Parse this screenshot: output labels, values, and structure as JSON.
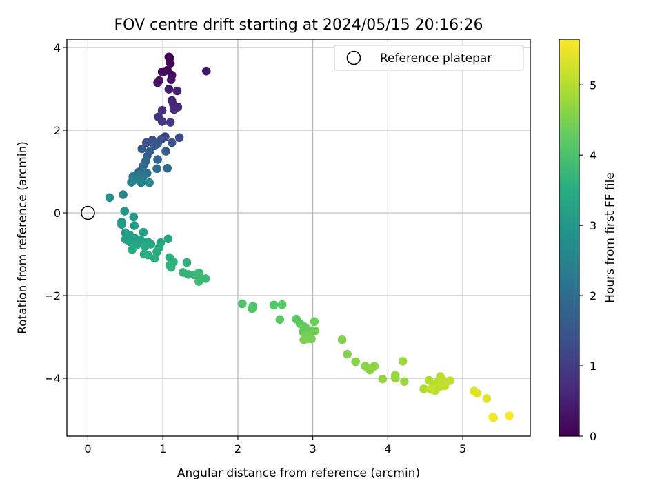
{
  "chart_data": {
    "type": "scatter",
    "title": "FOV centre drift starting at 2024/05/15 20:16:26",
    "xlabel": "Angular distance from reference (arcmin)",
    "ylabel": "Rotation from reference (arcmin)",
    "xlim": [
      -0.28,
      5.9
    ],
    "ylim": [
      -5.4,
      4.2
    ],
    "xticks": [
      0,
      1,
      2,
      3,
      4,
      5
    ],
    "yticks": [
      -4,
      -2,
      0,
      2,
      4
    ],
    "grid": true,
    "legend": {
      "position": "top-right",
      "entries": [
        "Reference platepar"
      ]
    },
    "reference_point": {
      "x": 0,
      "y": 0
    },
    "colorbar": {
      "label": "Hours from first FF file",
      "colormap": "viridis",
      "range": [
        0,
        5.65
      ],
      "ticks": [
        0,
        1,
        2,
        3,
        4,
        5
      ]
    },
    "points": [
      {
        "x": 1.08,
        "y": 3.77,
        "c": 0.03
      },
      {
        "x": 1.09,
        "y": 3.75,
        "c": 0.06
      },
      {
        "x": 1.1,
        "y": 3.62,
        "c": 0.09
      },
      {
        "x": 1.06,
        "y": 3.45,
        "c": 0.12
      },
      {
        "x": 1.02,
        "y": 3.42,
        "c": 0.15
      },
      {
        "x": 0.99,
        "y": 3.41,
        "c": 0.18
      },
      {
        "x": 1.12,
        "y": 3.33,
        "c": 0.21
      },
      {
        "x": 1.11,
        "y": 3.22,
        "c": 0.24
      },
      {
        "x": 0.95,
        "y": 3.2,
        "c": 0.27
      },
      {
        "x": 0.93,
        "y": 3.15,
        "c": 0.3
      },
      {
        "x": 1.58,
        "y": 3.43,
        "c": 0.4
      },
      {
        "x": 1.08,
        "y": 2.99,
        "c": 0.45
      },
      {
        "x": 1.19,
        "y": 2.95,
        "c": 0.5
      },
      {
        "x": 1.12,
        "y": 2.72,
        "c": 0.55
      },
      {
        "x": 1.14,
        "y": 2.62,
        "c": 0.6
      },
      {
        "x": 1.2,
        "y": 2.56,
        "c": 0.65
      },
      {
        "x": 1.15,
        "y": 2.5,
        "c": 0.7
      },
      {
        "x": 0.99,
        "y": 2.48,
        "c": 0.75
      },
      {
        "x": 0.94,
        "y": 2.32,
        "c": 0.8
      },
      {
        "x": 0.99,
        "y": 2.21,
        "c": 0.85
      },
      {
        "x": 1.1,
        "y": 2.19,
        "c": 0.9
      },
      {
        "x": 1.03,
        "y": 1.84,
        "c": 1.2
      },
      {
        "x": 1.22,
        "y": 1.82,
        "c": 1.25
      },
      {
        "x": 0.98,
        "y": 1.78,
        "c": 1.3
      },
      {
        "x": 0.86,
        "y": 1.76,
        "c": 1.35
      },
      {
        "x": 0.78,
        "y": 1.7,
        "c": 1.4
      },
      {
        "x": 1.12,
        "y": 1.7,
        "c": 1.45
      },
      {
        "x": 0.93,
        "y": 1.67,
        "c": 1.5
      },
      {
        "x": 0.89,
        "y": 1.62,
        "c": 1.55
      },
      {
        "x": 0.72,
        "y": 1.55,
        "c": 1.6
      },
      {
        "x": 0.83,
        "y": 1.5,
        "c": 1.65
      },
      {
        "x": 1.04,
        "y": 1.49,
        "c": 1.7
      },
      {
        "x": 0.79,
        "y": 1.37,
        "c": 1.75
      },
      {
        "x": 0.93,
        "y": 1.29,
        "c": 1.8
      },
      {
        "x": 0.77,
        "y": 1.25,
        "c": 1.85
      },
      {
        "x": 0.74,
        "y": 1.14,
        "c": 1.9
      },
      {
        "x": 1.06,
        "y": 1.08,
        "c": 1.95
      },
      {
        "x": 0.92,
        "y": 1.07,
        "c": 2.0
      },
      {
        "x": 0.73,
        "y": 1.02,
        "c": 2.05
      },
      {
        "x": 0.68,
        "y": 0.99,
        "c": 2.1
      },
      {
        "x": 0.79,
        "y": 0.96,
        "c": 2.15
      },
      {
        "x": 0.64,
        "y": 0.91,
        "c": 2.2
      },
      {
        "x": 0.6,
        "y": 0.88,
        "c": 2.25
      },
      {
        "x": 0.73,
        "y": 0.86,
        "c": 2.3
      },
      {
        "x": 0.67,
        "y": 0.82,
        "c": 2.35
      },
      {
        "x": 0.61,
        "y": 0.79,
        "c": 2.4
      },
      {
        "x": 0.58,
        "y": 0.74,
        "c": 2.45
      },
      {
        "x": 0.71,
        "y": 0.73,
        "c": 2.5
      },
      {
        "x": 0.82,
        "y": 0.73,
        "c": 2.55
      },
      {
        "x": 0.47,
        "y": 0.44,
        "c": 2.65
      },
      {
        "x": 0.29,
        "y": 0.37,
        "c": 2.75
      },
      {
        "x": 0.49,
        "y": 0.04,
        "c": 2.95
      },
      {
        "x": 0.45,
        "y": -0.22,
        "c": 3.0
      },
      {
        "x": 0.61,
        "y": -0.1,
        "c": 3.02
      },
      {
        "x": 0.45,
        "y": -0.28,
        "c": 3.05
      },
      {
        "x": 0.62,
        "y": -0.31,
        "c": 3.07
      },
      {
        "x": 0.5,
        "y": -0.48,
        "c": 3.1
      },
      {
        "x": 0.74,
        "y": -0.47,
        "c": 3.12
      },
      {
        "x": 0.56,
        "y": -0.54,
        "c": 3.15
      },
      {
        "x": 0.5,
        "y": -0.64,
        "c": 3.17
      },
      {
        "x": 0.63,
        "y": -0.62,
        "c": 3.2
      },
      {
        "x": 0.7,
        "y": -0.65,
        "c": 3.22
      },
      {
        "x": 0.56,
        "y": -0.7,
        "c": 3.25
      },
      {
        "x": 0.8,
        "y": -0.7,
        "c": 3.27
      },
      {
        "x": 0.97,
        "y": -0.72,
        "c": 3.3
      },
      {
        "x": 1.07,
        "y": -0.63,
        "c": 3.32
      },
      {
        "x": 0.84,
        "y": -0.76,
        "c": 3.35
      },
      {
        "x": 0.65,
        "y": -0.78,
        "c": 3.37
      },
      {
        "x": 0.76,
        "y": -0.82,
        "c": 3.4
      },
      {
        "x": 0.95,
        "y": -0.84,
        "c": 3.42
      },
      {
        "x": 0.59,
        "y": -0.89,
        "c": 3.45
      },
      {
        "x": 0.92,
        "y": -0.94,
        "c": 3.47
      },
      {
        "x": 0.75,
        "y": -1.0,
        "c": 3.5
      },
      {
        "x": 0.8,
        "y": -1.02,
        "c": 3.52
      },
      {
        "x": 0.89,
        "y": -1.1,
        "c": 3.55
      },
      {
        "x": 1.09,
        "y": -1.08,
        "c": 3.57
      },
      {
        "x": 1.14,
        "y": -1.19,
        "c": 3.6
      },
      {
        "x": 1.32,
        "y": -1.2,
        "c": 3.62
      },
      {
        "x": 1.09,
        "y": -1.27,
        "c": 3.65
      },
      {
        "x": 1.11,
        "y": -1.32,
        "c": 3.67
      },
      {
        "x": 1.27,
        "y": -1.44,
        "c": 3.7
      },
      {
        "x": 1.34,
        "y": -1.49,
        "c": 3.72
      },
      {
        "x": 1.42,
        "y": -1.5,
        "c": 3.75
      },
      {
        "x": 1.48,
        "y": -1.45,
        "c": 3.77
      },
      {
        "x": 1.49,
        "y": -1.54,
        "c": 3.8
      },
      {
        "x": 1.57,
        "y": -1.59,
        "c": 3.82
      },
      {
        "x": 1.48,
        "y": -1.66,
        "c": 3.85
      },
      {
        "x": 2.06,
        "y": -2.2,
        "c": 4.05
      },
      {
        "x": 2.2,
        "y": -2.26,
        "c": 4.08
      },
      {
        "x": 2.19,
        "y": -2.32,
        "c": 4.1
      },
      {
        "x": 2.48,
        "y": -2.23,
        "c": 4.12
      },
      {
        "x": 2.59,
        "y": -2.22,
        "c": 4.15
      },
      {
        "x": 2.56,
        "y": -2.58,
        "c": 4.18
      },
      {
        "x": 2.78,
        "y": -2.57,
        "c": 4.22
      },
      {
        "x": 2.83,
        "y": -2.68,
        "c": 4.25
      },
      {
        "x": 2.88,
        "y": -2.75,
        "c": 4.28
      },
      {
        "x": 2.92,
        "y": -2.8,
        "c": 4.3
      },
      {
        "x": 2.87,
        "y": -2.88,
        "c": 4.32
      },
      {
        "x": 2.98,
        "y": -2.85,
        "c": 4.35
      },
      {
        "x": 3.02,
        "y": -2.63,
        "c": 4.37
      },
      {
        "x": 3.03,
        "y": -2.85,
        "c": 4.4
      },
      {
        "x": 2.9,
        "y": -2.95,
        "c": 4.42
      },
      {
        "x": 2.92,
        "y": -3.05,
        "c": 4.45
      },
      {
        "x": 2.98,
        "y": -3.05,
        "c": 4.47
      },
      {
        "x": 2.88,
        "y": -3.07,
        "c": 4.48
      },
      {
        "x": 3.39,
        "y": -3.07,
        "c": 4.55
      },
      {
        "x": 3.46,
        "y": -3.42,
        "c": 4.58
      },
      {
        "x": 3.57,
        "y": -3.6,
        "c": 4.6
      },
      {
        "x": 3.7,
        "y": -3.71,
        "c": 4.62
      },
      {
        "x": 3.82,
        "y": -3.71,
        "c": 4.65
      },
      {
        "x": 3.76,
        "y": -3.8,
        "c": 4.67
      },
      {
        "x": 3.93,
        "y": -4.02,
        "c": 4.7
      },
      {
        "x": 4.1,
        "y": -3.93,
        "c": 4.72
      },
      {
        "x": 4.1,
        "y": -4.0,
        "c": 4.75
      },
      {
        "x": 4.2,
        "y": -3.59,
        "c": 4.77
      },
      {
        "x": 4.22,
        "y": -4.08,
        "c": 4.8
      },
      {
        "x": 4.48,
        "y": -4.26,
        "c": 4.95
      },
      {
        "x": 4.55,
        "y": -4.05,
        "c": 4.97
      },
      {
        "x": 4.6,
        "y": -4.2,
        "c": 5.0
      },
      {
        "x": 4.63,
        "y": -4.3,
        "c": 5.02
      },
      {
        "x": 4.66,
        "y": -4.1,
        "c": 5.04
      },
      {
        "x": 4.7,
        "y": -3.96,
        "c": 5.06
      },
      {
        "x": 4.72,
        "y": -4.02,
        "c": 5.08
      },
      {
        "x": 4.68,
        "y": -4.22,
        "c": 5.1
      },
      {
        "x": 4.76,
        "y": -4.18,
        "c": 5.12
      },
      {
        "x": 4.83,
        "y": -4.06,
        "c": 5.14
      },
      {
        "x": 4.58,
        "y": -4.27,
        "c": 5.16
      },
      {
        "x": 5.15,
        "y": -4.31,
        "c": 5.35
      },
      {
        "x": 5.19,
        "y": -4.36,
        "c": 5.4
      },
      {
        "x": 5.32,
        "y": -4.49,
        "c": 5.45
      },
      {
        "x": 5.41,
        "y": -4.96,
        "c": 5.55
      },
      {
        "x": 5.4,
        "y": -4.94,
        "c": 5.58
      },
      {
        "x": 5.62,
        "y": -4.91,
        "c": 5.63
      }
    ]
  }
}
